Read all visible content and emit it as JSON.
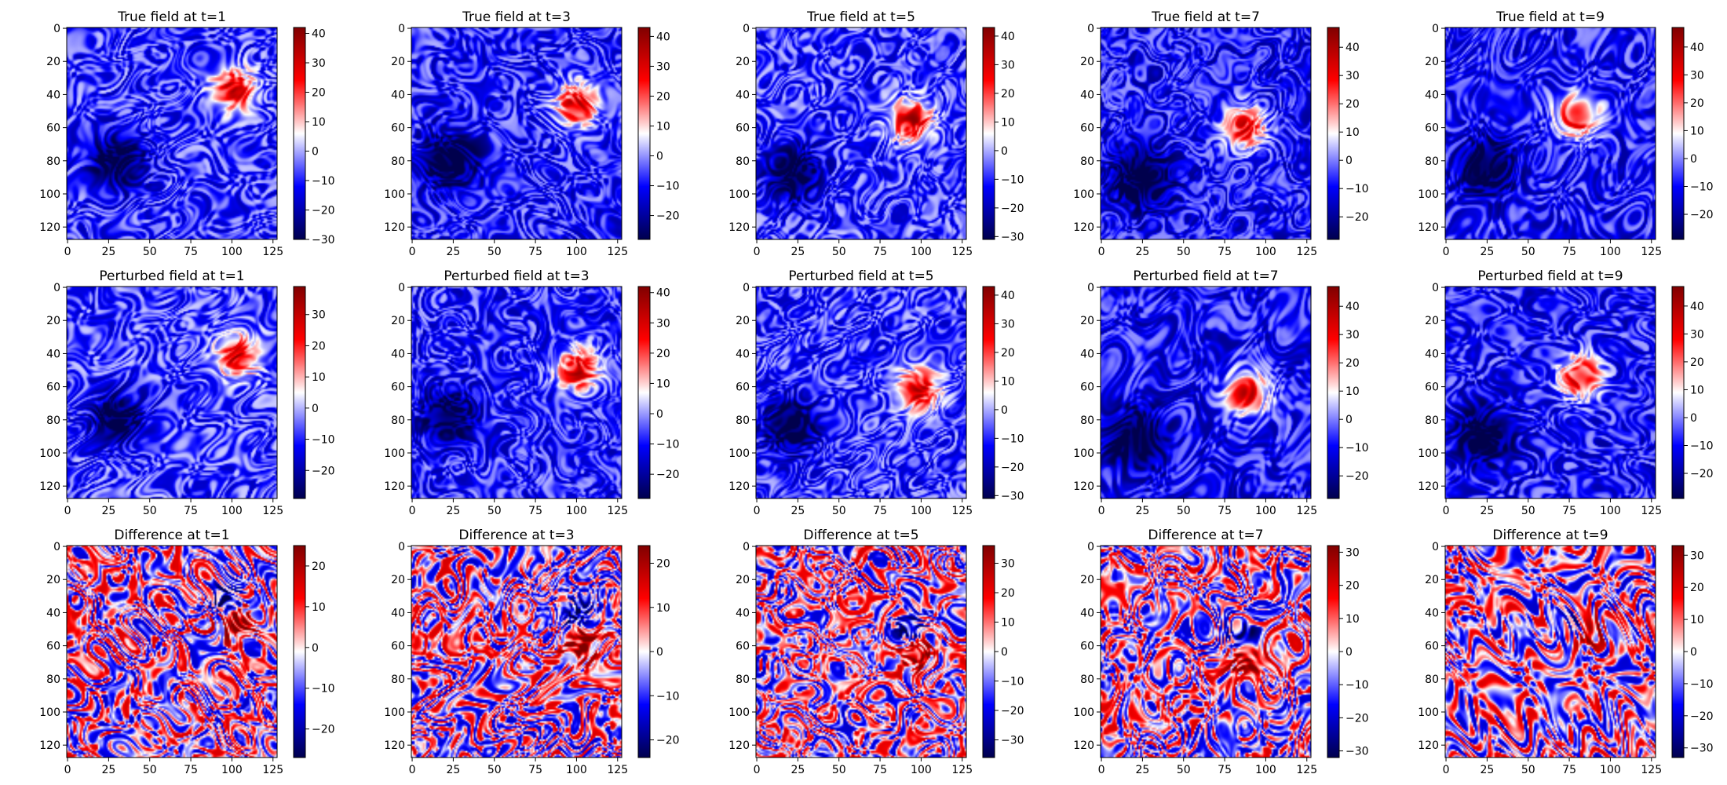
{
  "chart_data": {
    "type": "heatmap",
    "colormap": "seismic",
    "grid": false,
    "field_size": [
      128,
      128
    ],
    "x_ticks": [
      "0",
      "25",
      "50",
      "75",
      "100",
      "125"
    ],
    "y_ticks": [
      "0",
      "20",
      "40",
      "60",
      "80",
      "100",
      "120"
    ],
    "rows": [
      {
        "kind": "true",
        "panels": [
          {
            "title": "True field at t=1",
            "clim": [
              -30,
              42
            ],
            "cbar_ticks": [
              "40",
              "30",
              "20",
              "10",
              "0",
              "−10",
              "−20",
              "−30"
            ],
            "features": [
              {
                "x": 101,
                "y": 37,
                "sign": 1,
                "size": 9
              },
              {
                "x": 30,
                "y": 80,
                "sign": -1,
                "size": 12
              }
            ]
          },
          {
            "title": "True field at t=3",
            "clim": [
              -28,
              43
            ],
            "cbar_ticks": [
              "40",
              "30",
              "20",
              "10",
              "0",
              "−10",
              "−20"
            ],
            "features": [
              {
                "x": 100,
                "y": 46,
                "sign": 1,
                "size": 9
              },
              {
                "x": 23,
                "y": 80,
                "sign": -1,
                "size": 12
              }
            ]
          },
          {
            "title": "True field at t=5",
            "clim": [
              -31,
              43
            ],
            "cbar_ticks": [
              "40",
              "30",
              "20",
              "10",
              "0",
              "−10",
              "−20",
              "−30"
            ],
            "features": [
              {
                "x": 94,
                "y": 56,
                "sign": 1,
                "size": 9
              },
              {
                "x": 22,
                "y": 88,
                "sign": -1,
                "size": 12
              }
            ]
          },
          {
            "title": "True field at t=7",
            "clim": [
              -28,
              47
            ],
            "cbar_ticks": [
              "40",
              "30",
              "20",
              "10",
              "0",
              "−10",
              "−20"
            ],
            "features": [
              {
                "x": 87,
                "y": 60,
                "sign": 1,
                "size": 9
              },
              {
                "x": 24,
                "y": 90,
                "sign": -1,
                "size": 13
              }
            ]
          },
          {
            "title": "True field at t=9",
            "clim": [
              -29,
              47
            ],
            "cbar_ticks": [
              "40",
              "30",
              "20",
              "10",
              "0",
              "−10",
              "−20"
            ],
            "features": [
              {
                "x": 80,
                "y": 53,
                "sign": 1,
                "size": 9
              },
              {
                "x": 25,
                "y": 84,
                "sign": -1,
                "size": 12
              }
            ]
          }
        ]
      },
      {
        "kind": "perturbed",
        "panels": [
          {
            "title": "Perturbed field at t=1",
            "clim": [
              -29,
              39
            ],
            "cbar_ticks": [
              "30",
              "20",
              "10",
              "0",
              "−10",
              "−20"
            ],
            "features": [
              {
                "x": 103,
                "y": 41,
                "sign": 1,
                "size": 9
              },
              {
                "x": 30,
                "y": 79,
                "sign": -1,
                "size": 11
              }
            ]
          },
          {
            "title": "Perturbed field at t=3",
            "clim": [
              -28,
              42
            ],
            "cbar_ticks": [
              "40",
              "30",
              "20",
              "10",
              "0",
              "−10",
              "−20"
            ],
            "features": [
              {
                "x": 101,
                "y": 50,
                "sign": 1,
                "size": 9
              },
              {
                "x": 22,
                "y": 78,
                "sign": -1,
                "size": 11
              }
            ]
          },
          {
            "title": "Perturbed field at t=5",
            "clim": [
              -31,
              43
            ],
            "cbar_ticks": [
              "40",
              "30",
              "20",
              "10",
              "0",
              "−10",
              "−20",
              "−30"
            ],
            "features": [
              {
                "x": 98,
                "y": 62,
                "sign": 1,
                "size": 9
              },
              {
                "x": 21,
                "y": 84,
                "sign": -1,
                "size": 12
              }
            ]
          },
          {
            "title": "Perturbed field at t=7",
            "clim": [
              -28,
              47
            ],
            "cbar_ticks": [
              "40",
              "30",
              "20",
              "10",
              "0",
              "−10",
              "−20"
            ],
            "features": [
              {
                "x": 89,
                "y": 64,
                "sign": 1,
                "size": 9
              },
              {
                "x": 22,
                "y": 92,
                "sign": -1,
                "size": 13
              }
            ]
          },
          {
            "title": "Perturbed field at t=9",
            "clim": [
              -29,
              47
            ],
            "cbar_ticks": [
              "40",
              "30",
              "20",
              "10",
              "0",
              "−10",
              "−20"
            ],
            "features": [
              {
                "x": 82,
                "y": 54,
                "sign": 1,
                "size": 9
              },
              {
                "x": 23,
                "y": 89,
                "sign": -1,
                "size": 12
              }
            ]
          }
        ]
      },
      {
        "kind": "difference",
        "panels": [
          {
            "title": "Difference at t=1",
            "clim": [
              -27,
              25
            ],
            "cbar_ticks": [
              "20",
              "10",
              "0",
              "−10",
              "−20"
            ],
            "features": [
              {
                "x": 103,
                "y": 45,
                "sign": 1,
                "size": 8
              },
              {
                "x": 97,
                "y": 33,
                "sign": -1,
                "size": 7
              }
            ]
          },
          {
            "title": "Difference at t=3",
            "clim": [
              -24,
              24
            ],
            "cbar_ticks": [
              "20",
              "10",
              "0",
              "−10",
              "−20"
            ],
            "features": [
              {
                "x": 102,
                "y": 57,
                "sign": 1,
                "size": 8
              },
              {
                "x": 99,
                "y": 42,
                "sign": -1,
                "size": 7
              }
            ]
          },
          {
            "title": "Difference at t=5",
            "clim": [
              -36,
              36
            ],
            "cbar_ticks": [
              "30",
              "20",
              "10",
              "0",
              "−10",
              "−20",
              "−30"
            ],
            "features": [
              {
                "x": 96,
                "y": 64,
                "sign": 1,
                "size": 8
              },
              {
                "x": 93,
                "y": 52,
                "sign": -1,
                "size": 7
              }
            ]
          },
          {
            "title": "Difference at t=7",
            "clim": [
              -32,
              32
            ],
            "cbar_ticks": [
              "30",
              "20",
              "10",
              "0",
              "−10",
              "−20",
              "−30"
            ],
            "features": [
              {
                "x": 88,
                "y": 66,
                "sign": 1,
                "size": 8
              },
              {
                "x": 86,
                "y": 55,
                "sign": -1,
                "size": 7
              }
            ]
          },
          {
            "title": "Difference at t=9",
            "clim": [
              -33,
              33
            ],
            "cbar_ticks": [
              "30",
              "20",
              "10",
              "0",
              "−10",
              "−20",
              "−30"
            ],
            "features": [
              {
                "x": 85,
                "y": 50,
                "sign": 1,
                "size": 7
              },
              {
                "x": 80,
                "y": 48,
                "sign": -1,
                "size": 6
              }
            ]
          }
        ]
      }
    ]
  }
}
